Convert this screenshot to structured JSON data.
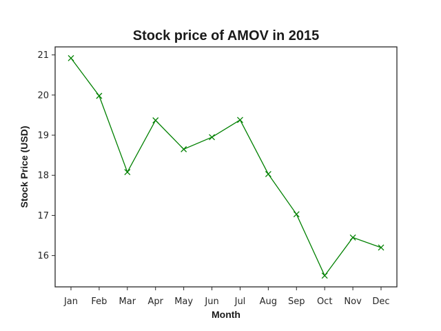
{
  "chart_data": {
    "type": "line",
    "title": "Stock price of AMOV in 2015",
    "xlabel": "Month",
    "ylabel": "Stock Price (USD)",
    "categories": [
      "Jan",
      "Feb",
      "Mar",
      "Apr",
      "May",
      "Jun",
      "Jul",
      "Aug",
      "Sep",
      "Oct",
      "Nov",
      "Dec"
    ],
    "series": [
      {
        "values": [
          20.92,
          19.98,
          18.08,
          19.37,
          18.65,
          18.95,
          19.38,
          18.03,
          17.03,
          15.5,
          16.45,
          16.2
        ],
        "color": "#008000",
        "marker": "x"
      }
    ],
    "yticks": [
      16,
      17,
      18,
      19,
      20,
      21
    ],
    "ylim": [
      15.22,
      21.2
    ],
    "grid": false,
    "legend": "none"
  }
}
